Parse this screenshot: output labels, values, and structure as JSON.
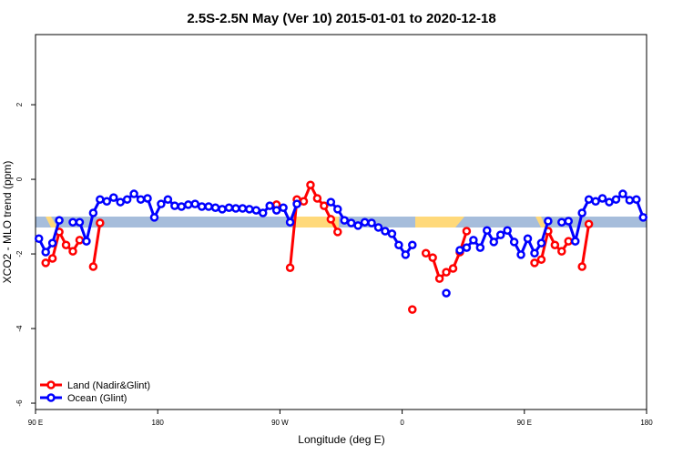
{
  "chart_data": {
    "type": "line",
    "title": "2.5S-2.5N May (Ver 10)   2015-01-01 to 2020-12-18",
    "xlabel": "Longitude (deg E)",
    "ylabel": "XCO2 - MLO trend (ppm)",
    "x": [
      92.5,
      97.5,
      102.5,
      107.5,
      112.5,
      117.5,
      122.5,
      127.5,
      132.5,
      137.5,
      142.5,
      147.5,
      152.5,
      157.5,
      162.5,
      167.5,
      172.5,
      177.5,
      182.5,
      187.5,
      192.5,
      197.5,
      202.5,
      207.5,
      212.5,
      217.5,
      222.5,
      227.5,
      232.5,
      237.5,
      242.5,
      247.5,
      252.5,
      257.5,
      262.5,
      267.5,
      272.5,
      277.5,
      282.5,
      287.5,
      292.5,
      297.5,
      302.5,
      307.5,
      312.5,
      317.5,
      322.5,
      327.5,
      332.5,
      337.5,
      342.5,
      347.5,
      352.5,
      357.5,
      362.5,
      367.5,
      372.5,
      377.5,
      382.5,
      387.5,
      392.5,
      397.5,
      402.5,
      407.5,
      412.5,
      417.5,
      422.5,
      427.5,
      432.5,
      437.5,
      442.5,
      447.5,
      452.5,
      457.5,
      462.5,
      467.5,
      472.5,
      477.5,
      482.5,
      487.5,
      492.5,
      497.5,
      502.5,
      507.5,
      512.5,
      517.5,
      522.5,
      527.5,
      532.5,
      537.5
    ],
    "xlim": [
      90,
      540
    ],
    "xticks": [
      {
        "value": 90,
        "label": "90 E"
      },
      180,
      {
        "value": 270,
        "label": "90 W"
      },
      {
        "value": 360,
        "label": "0"
      },
      {
        "value": 450,
        "label": "90 E"
      },
      {
        "value": 540,
        "label": "180"
      }
    ],
    "ylim": [
      -6.17,
      3.88
    ],
    "yticks": [
      -6,
      -4,
      -2,
      0,
      2
    ],
    "legend": "bottom-left",
    "series": [
      {
        "name": "Land (Nadir&Glint)",
        "color": "#ff0000",
        "values": [
          null,
          -2.24,
          -2.12,
          -1.41,
          -1.76,
          -1.93,
          -1.63,
          null,
          -2.34,
          -1.17,
          null,
          null,
          null,
          null,
          null,
          null,
          null,
          null,
          null,
          null,
          null,
          null,
          null,
          null,
          null,
          null,
          null,
          null,
          null,
          null,
          null,
          null,
          null,
          null,
          null,
          -0.68,
          null,
          -2.37,
          -0.54,
          -0.59,
          -0.15,
          -0.51,
          -0.71,
          -1.07,
          -1.41,
          null,
          null,
          null,
          null,
          null,
          null,
          null,
          null,
          null,
          null,
          -3.49,
          null,
          -1.98,
          -2.1,
          -2.66,
          -2.49,
          -2.39,
          -1.95,
          -1.39,
          null,
          null,
          null,
          null,
          null,
          null,
          null,
          null,
          null,
          -2.24,
          -2.15,
          -1.39,
          -1.76,
          -1.93,
          -1.66,
          null,
          -2.34,
          -1.2,
          null,
          null,
          null,
          null,
          null,
          null,
          null,
          null
        ]
      },
      {
        "name": "Ocean (Glint)",
        "color": "#0000ff",
        "values": [
          -1.59,
          -1.95,
          -1.71,
          -1.1,
          null,
          -1.15,
          -1.15,
          -1.66,
          -0.9,
          -0.54,
          -0.59,
          -0.49,
          -0.61,
          -0.54,
          -0.39,
          -0.54,
          -0.51,
          -1.02,
          -0.66,
          -0.54,
          -0.71,
          -0.73,
          -0.68,
          -0.66,
          -0.73,
          -0.73,
          -0.76,
          -0.8,
          -0.76,
          -0.78,
          -0.78,
          -0.8,
          -0.83,
          -0.9,
          -0.71,
          -0.83,
          -0.76,
          -1.15,
          -0.66,
          null,
          null,
          null,
          null,
          -0.61,
          -0.8,
          -1.1,
          -1.17,
          -1.24,
          -1.15,
          -1.17,
          -1.29,
          -1.39,
          -1.46,
          -1.76,
          -2.02,
          -1.76,
          null,
          null,
          null,
          null,
          -3.05,
          null,
          -1.9,
          -1.83,
          -1.63,
          -1.83,
          -1.37,
          -1.68,
          -1.49,
          -1.37,
          -1.68,
          -2.02,
          -1.59,
          -1.98,
          -1.71,
          -1.12,
          null,
          -1.15,
          -1.12,
          -1.66,
          -0.9,
          -0.54,
          -0.59,
          -0.51,
          -0.61,
          -0.54,
          -0.39,
          -0.56,
          -0.54,
          -1.02
        ]
      }
    ]
  }
}
